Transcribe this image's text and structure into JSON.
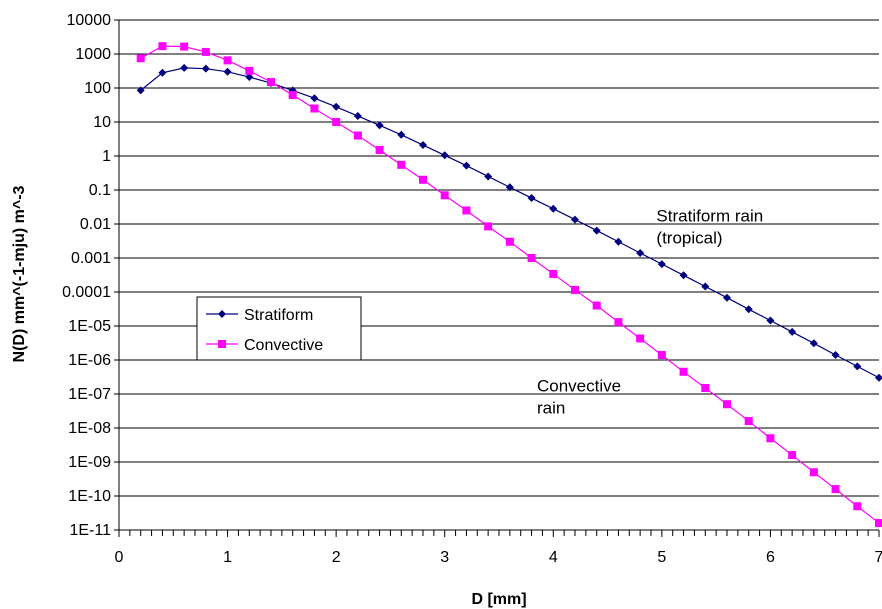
{
  "chart_data": {
    "type": "line",
    "title": "",
    "xlabel": "D [mm]",
    "ylabel": "N(D) mm^(-1-mju) m^-3",
    "xlim": [
      0,
      7
    ],
    "ylim": [
      1e-11,
      10000
    ],
    "yscale": "log",
    "x_ticks": [
      "0",
      "1",
      "2",
      "3",
      "4",
      "5",
      "6",
      "7"
    ],
    "y_ticks": [
      "1E-11",
      "1E-10",
      "1E-09",
      "1E-08",
      "1E-07",
      "1E-06",
      "1E-05",
      "0.0001",
      "0.001",
      "0.01",
      "0.1",
      "1",
      "10",
      "100",
      "1000",
      "10000"
    ],
    "grid": "horizontal",
    "legend": {
      "placement": "left-middle"
    },
    "series": [
      {
        "name": "Stratiform",
        "color": "#000080",
        "marker": "diamond",
        "x": [
          0.2,
          0.4,
          0.6,
          0.8,
          1.0,
          1.2,
          1.4,
          1.6,
          1.8,
          2.0,
          2.2,
          2.4,
          2.6,
          2.8,
          3.0,
          3.2,
          3.4,
          3.6,
          3.8,
          4.0,
          4.2,
          4.4,
          4.6,
          4.8,
          5.0,
          5.2,
          5.4,
          5.6,
          5.8,
          6.0,
          6.2,
          6.4,
          6.6,
          6.8,
          7.0
        ],
        "y": [
          85,
          280,
          390,
          370,
          300,
          210,
          140,
          85,
          50,
          28,
          15,
          8,
          4.2,
          2.1,
          1.05,
          0.52,
          0.25,
          0.12,
          0.058,
          0.028,
          0.0135,
          0.0064,
          0.003,
          0.0014,
          0.00066,
          0.00031,
          0.000145,
          6.8e-05,
          3.1e-05,
          1.45e-05,
          6.7e-06,
          3.1e-06,
          1.4e-06,
          6.5e-07,
          3e-07
        ]
      },
      {
        "name": "Convective",
        "color": "#ff00ff",
        "marker": "square",
        "x": [
          0.2,
          0.4,
          0.6,
          0.8,
          1.0,
          1.2,
          1.4,
          1.6,
          1.8,
          2.0,
          2.2,
          2.4,
          2.6,
          2.8,
          3.0,
          3.2,
          3.4,
          3.6,
          3.8,
          4.0,
          4.2,
          4.4,
          4.6,
          4.8,
          5.0,
          5.2,
          5.4,
          5.6,
          5.8,
          6.0,
          6.2,
          6.4,
          6.6,
          6.8,
          7.0
        ],
        "y": [
          750,
          1700,
          1650,
          1150,
          650,
          320,
          150,
          62,
          25,
          10,
          4,
          1.5,
          0.55,
          0.2,
          0.07,
          0.025,
          0.0085,
          0.003,
          0.001,
          0.00034,
          0.000115,
          4e-05,
          1.3e-05,
          4.3e-06,
          1.4e-06,
          4.5e-07,
          1.5e-07,
          5e-08,
          1.6e-08,
          5e-09,
          1.6e-09,
          5e-10,
          1.6e-10,
          5e-11,
          1.6e-11
        ]
      }
    ],
    "annotations": [
      {
        "lines": [
          "Stratiform rain",
          "(tropical)"
        ],
        "x": 4.95,
        "y": 0.012
      },
      {
        "lines": [
          "Convective",
          "rain"
        ],
        "x": 3.85,
        "y": 1.2e-07
      }
    ]
  }
}
